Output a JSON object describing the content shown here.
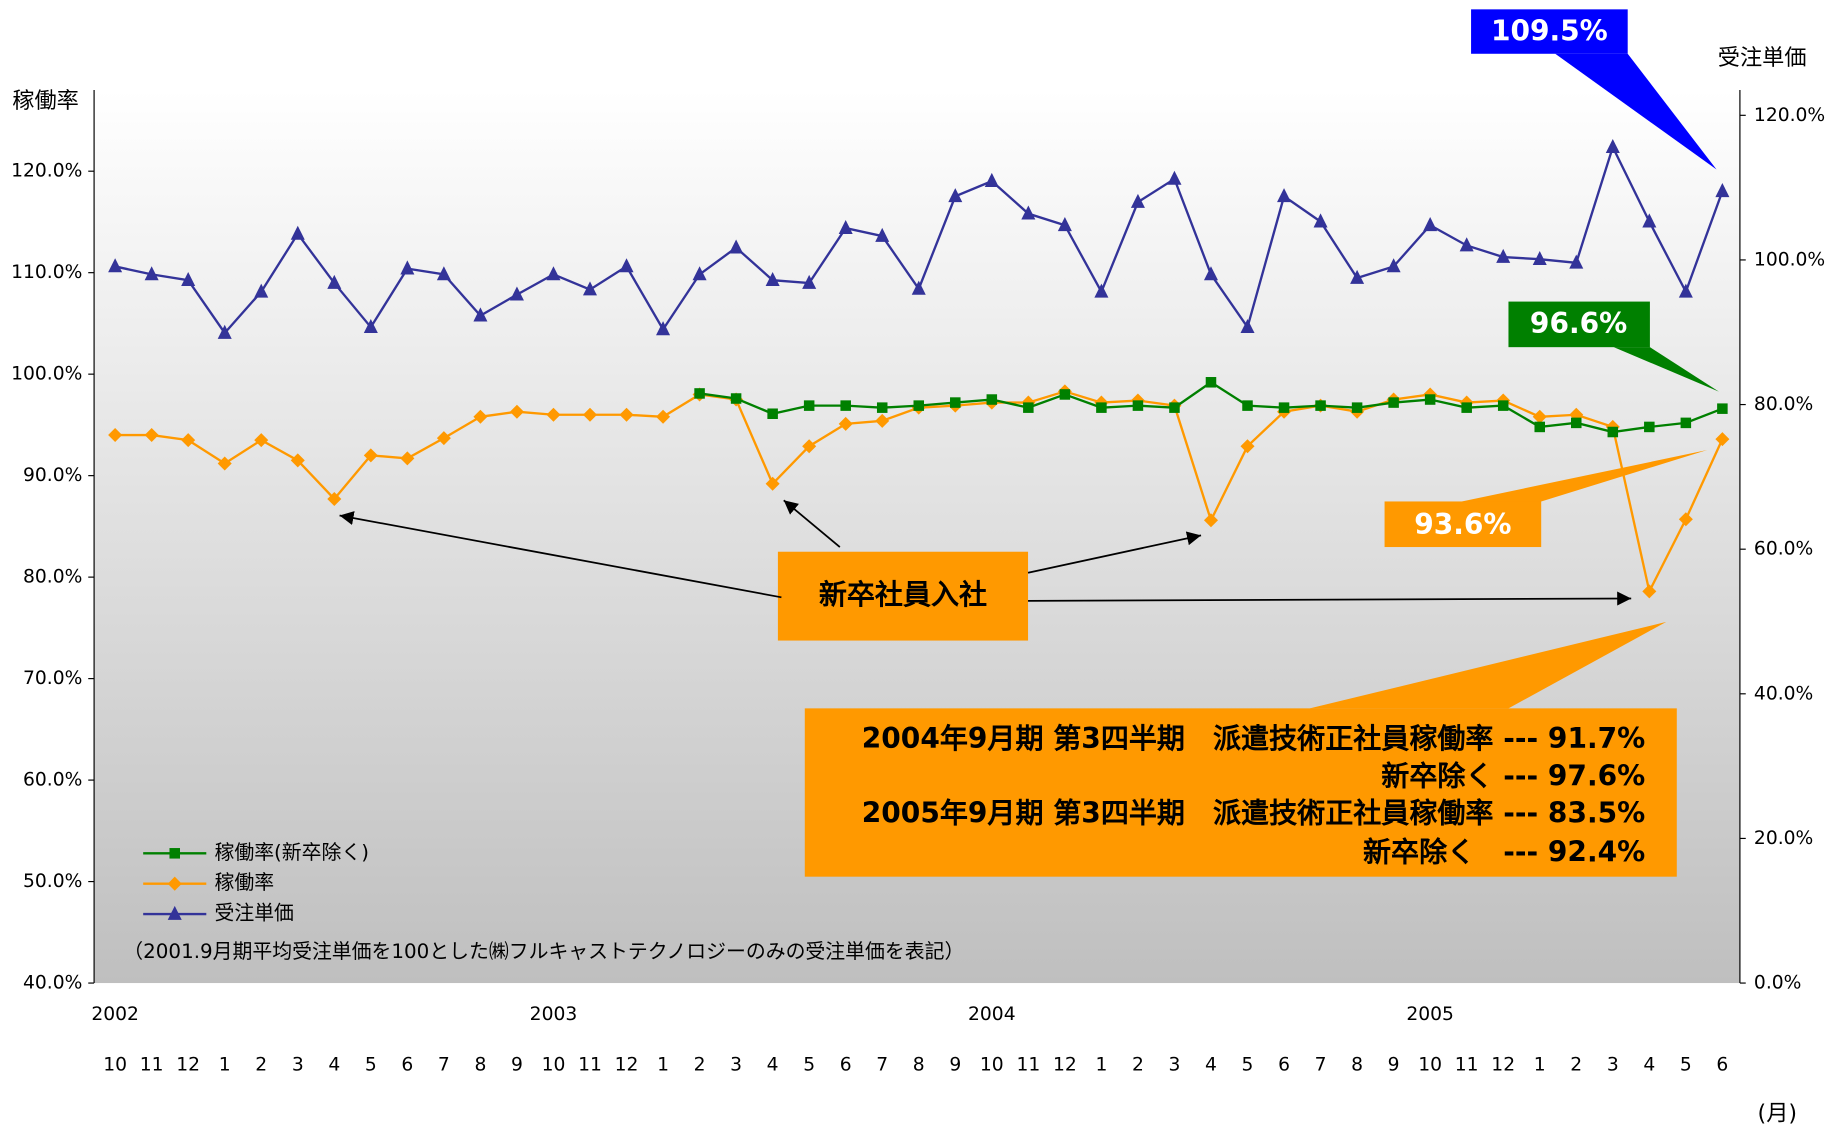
{
  "chart_data": {
    "type": "line",
    "y_label": "稼働率",
    "y2_label": "受注単価",
    "x_unit": "(月)",
    "categories": [
      "10",
      "11",
      "12",
      "1",
      "2",
      "3",
      "4",
      "5",
      "6",
      "7",
      "8",
      "9",
      "10",
      "11",
      "12",
      "1",
      "2",
      "3",
      "4",
      "5",
      "6",
      "7",
      "8",
      "9",
      "10",
      "11",
      "12",
      "1",
      "2",
      "3",
      "4",
      "5",
      "6",
      "7",
      "8",
      "9",
      "10",
      "11",
      "12",
      "1",
      "2",
      "3",
      "4",
      "5",
      "6"
    ],
    "x_groups": [
      {
        "label": "2002",
        "start": 0
      },
      {
        "label": "2003",
        "start": 12
      },
      {
        "label": "2004",
        "start": 24
      },
      {
        "label": "2005",
        "start": 36
      }
    ],
    "ylim": [
      40,
      128
    ],
    "yticks": [
      {
        "value": 40,
        "label": "40.0%"
      },
      {
        "value": 50,
        "label": "50.0%"
      },
      {
        "value": 60,
        "label": "60.0%"
      },
      {
        "value": 70,
        "label": "70.0%"
      },
      {
        "value": 80,
        "label": "80.0%"
      },
      {
        "value": 90,
        "label": "90.0%"
      },
      {
        "value": 100,
        "label": "100.0%"
      },
      {
        "value": 110,
        "label": "110.0%"
      },
      {
        "value": 120,
        "label": "120.0%"
      }
    ],
    "y2lim": [
      0,
      123.5
    ],
    "y2ticks": [
      {
        "value": 0,
        "label": "0.0%"
      },
      {
        "value": 20,
        "label": "20.0%"
      },
      {
        "value": 40,
        "label": "40.0%"
      },
      {
        "value": 60,
        "label": "60.0%"
      },
      {
        "value": 80,
        "label": "80.0%"
      },
      {
        "value": 100,
        "label": "100.0%"
      },
      {
        "value": 120,
        "label": "120.0%"
      }
    ],
    "series": [
      {
        "name": "稼働率(新卒除く)",
        "color": "#008000",
        "marker": "square",
        "values": [
          null,
          null,
          null,
          null,
          null,
          null,
          null,
          null,
          null,
          null,
          null,
          null,
          null,
          null,
          null,
          null,
          98.1,
          97.6,
          96.1,
          96.9,
          96.9,
          96.7,
          96.9,
          97.2,
          97.5,
          96.7,
          98.0,
          96.7,
          96.9,
          96.7,
          99.2,
          96.9,
          96.7,
          96.9,
          96.7,
          97.2,
          97.5,
          96.7,
          96.9,
          94.8,
          95.2,
          94.3,
          94.8,
          95.2,
          96.6
        ]
      },
      {
        "name": "稼働率",
        "color": "#ff9900",
        "marker": "diamond",
        "values": [
          94.0,
          94.0,
          93.5,
          91.2,
          93.5,
          91.5,
          87.7,
          92.0,
          91.7,
          93.7,
          95.8,
          96.3,
          96.0,
          96.0,
          96.0,
          95.8,
          98.0,
          97.5,
          89.2,
          92.9,
          95.1,
          95.4,
          96.7,
          96.9,
          97.2,
          97.2,
          98.3,
          97.2,
          97.4,
          96.9,
          85.6,
          92.9,
          96.3,
          96.9,
          96.3,
          97.5,
          98.0,
          97.2,
          97.4,
          95.8,
          96.0,
          94.8,
          78.6,
          85.7,
          93.6
        ]
      },
      {
        "name": "受注単価",
        "color": "#333399",
        "marker": "triangle",
        "axis": "y2",
        "values": [
          99.1,
          98.0,
          97.2,
          89.9,
          95.6,
          103.6,
          96.8,
          90.7,
          98.8,
          98.0,
          92.3,
          95.2,
          98.0,
          95.9,
          99.1,
          90.4,
          98.0,
          101.7,
          97.2,
          96.8,
          104.4,
          103.3,
          96.0,
          108.8,
          110.9,
          106.4,
          104.8,
          95.6,
          108.0,
          111.2,
          98.0,
          90.7,
          108.8,
          105.3,
          97.5,
          99.1,
          104.8,
          102.0,
          100.4,
          100.1,
          99.6,
          115.6,
          105.3,
          95.6,
          109.5
        ]
      }
    ],
    "annotations": [
      "109.5%",
      "96.6%",
      "93.6%",
      "新卒社員入社"
    ],
    "note_lines": [
      "2004年9月期 第3四半期　派遣技術正社員稼働率 --- 91.7%",
      "新卒除く --- 97.6%",
      "2005年9月期 第3四半期　派遣技術正社員稼働率 --- 83.5%",
      "新卒除く　--- 92.4%"
    ],
    "footnote": "（2001.9月期平均受注単価を100とした㈱フルキャストテクノロジーのみの受注単価を表記）"
  }
}
